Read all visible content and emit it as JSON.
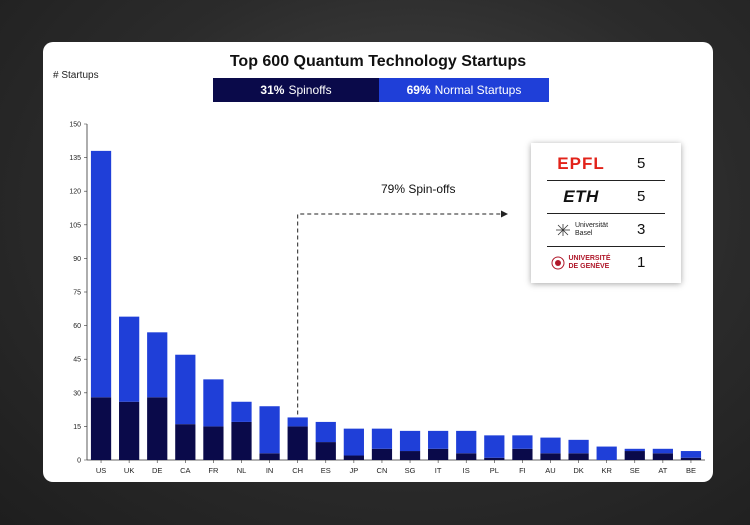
{
  "chart_data": {
    "type": "bar",
    "stacked": true,
    "title": "Top 600 Quantum Technology Startups",
    "ylabel": "# Startups",
    "xlabel": "",
    "ylim": [
      0,
      150
    ],
    "yticks": [
      0,
      15,
      30,
      45,
      60,
      75,
      90,
      105,
      120,
      135,
      150
    ],
    "categories": [
      "US",
      "UK",
      "DE",
      "CA",
      "FR",
      "NL",
      "IN",
      "CH",
      "ES",
      "JP",
      "CN",
      "SG",
      "IT",
      "IS",
      "PL",
      "FI",
      "AU",
      "DK",
      "KR",
      "SE",
      "AT",
      "BE"
    ],
    "series": [
      {
        "name": "Spinoffs",
        "color": "#0a0a4a",
        "values": [
          28,
          26,
          28,
          16,
          15,
          17,
          3,
          15,
          8,
          2,
          5,
          4,
          5,
          3,
          1,
          5,
          3,
          3,
          0,
          4,
          3,
          1
        ]
      },
      {
        "name": "Normal Startups",
        "color": "#1f3fd8",
        "values": [
          110,
          38,
          29,
          31,
          21,
          9,
          21,
          4,
          9,
          12,
          9,
          9,
          8,
          10,
          10,
          6,
          7,
          6,
          6,
          1,
          2,
          3
        ]
      }
    ],
    "totals": [
      138,
      64,
      57,
      47,
      36,
      26,
      24,
      19,
      17,
      14,
      14,
      13,
      13,
      13,
      11,
      11,
      10,
      9,
      6,
      5,
      5,
      4
    ],
    "grid": false
  },
  "split_bar": {
    "spinoffs": {
      "pct": "31%",
      "label": "Spinoffs"
    },
    "normal": {
      "pct": "69%",
      "label": "Normal Startups"
    }
  },
  "annotation": "79% Spin-offs",
  "institutions": [
    {
      "name": "EPFL",
      "count": "5"
    },
    {
      "name": "ETH",
      "count": "5"
    },
    {
      "name": "Universität Basel",
      "line1": "Universität",
      "line2": "Basel",
      "count": "3"
    },
    {
      "name": "UNIVERSITÉ DE GENÈVE",
      "line1": "UNIVERSITÉ",
      "line2": "DE GENÈVE",
      "count": "1"
    }
  ]
}
